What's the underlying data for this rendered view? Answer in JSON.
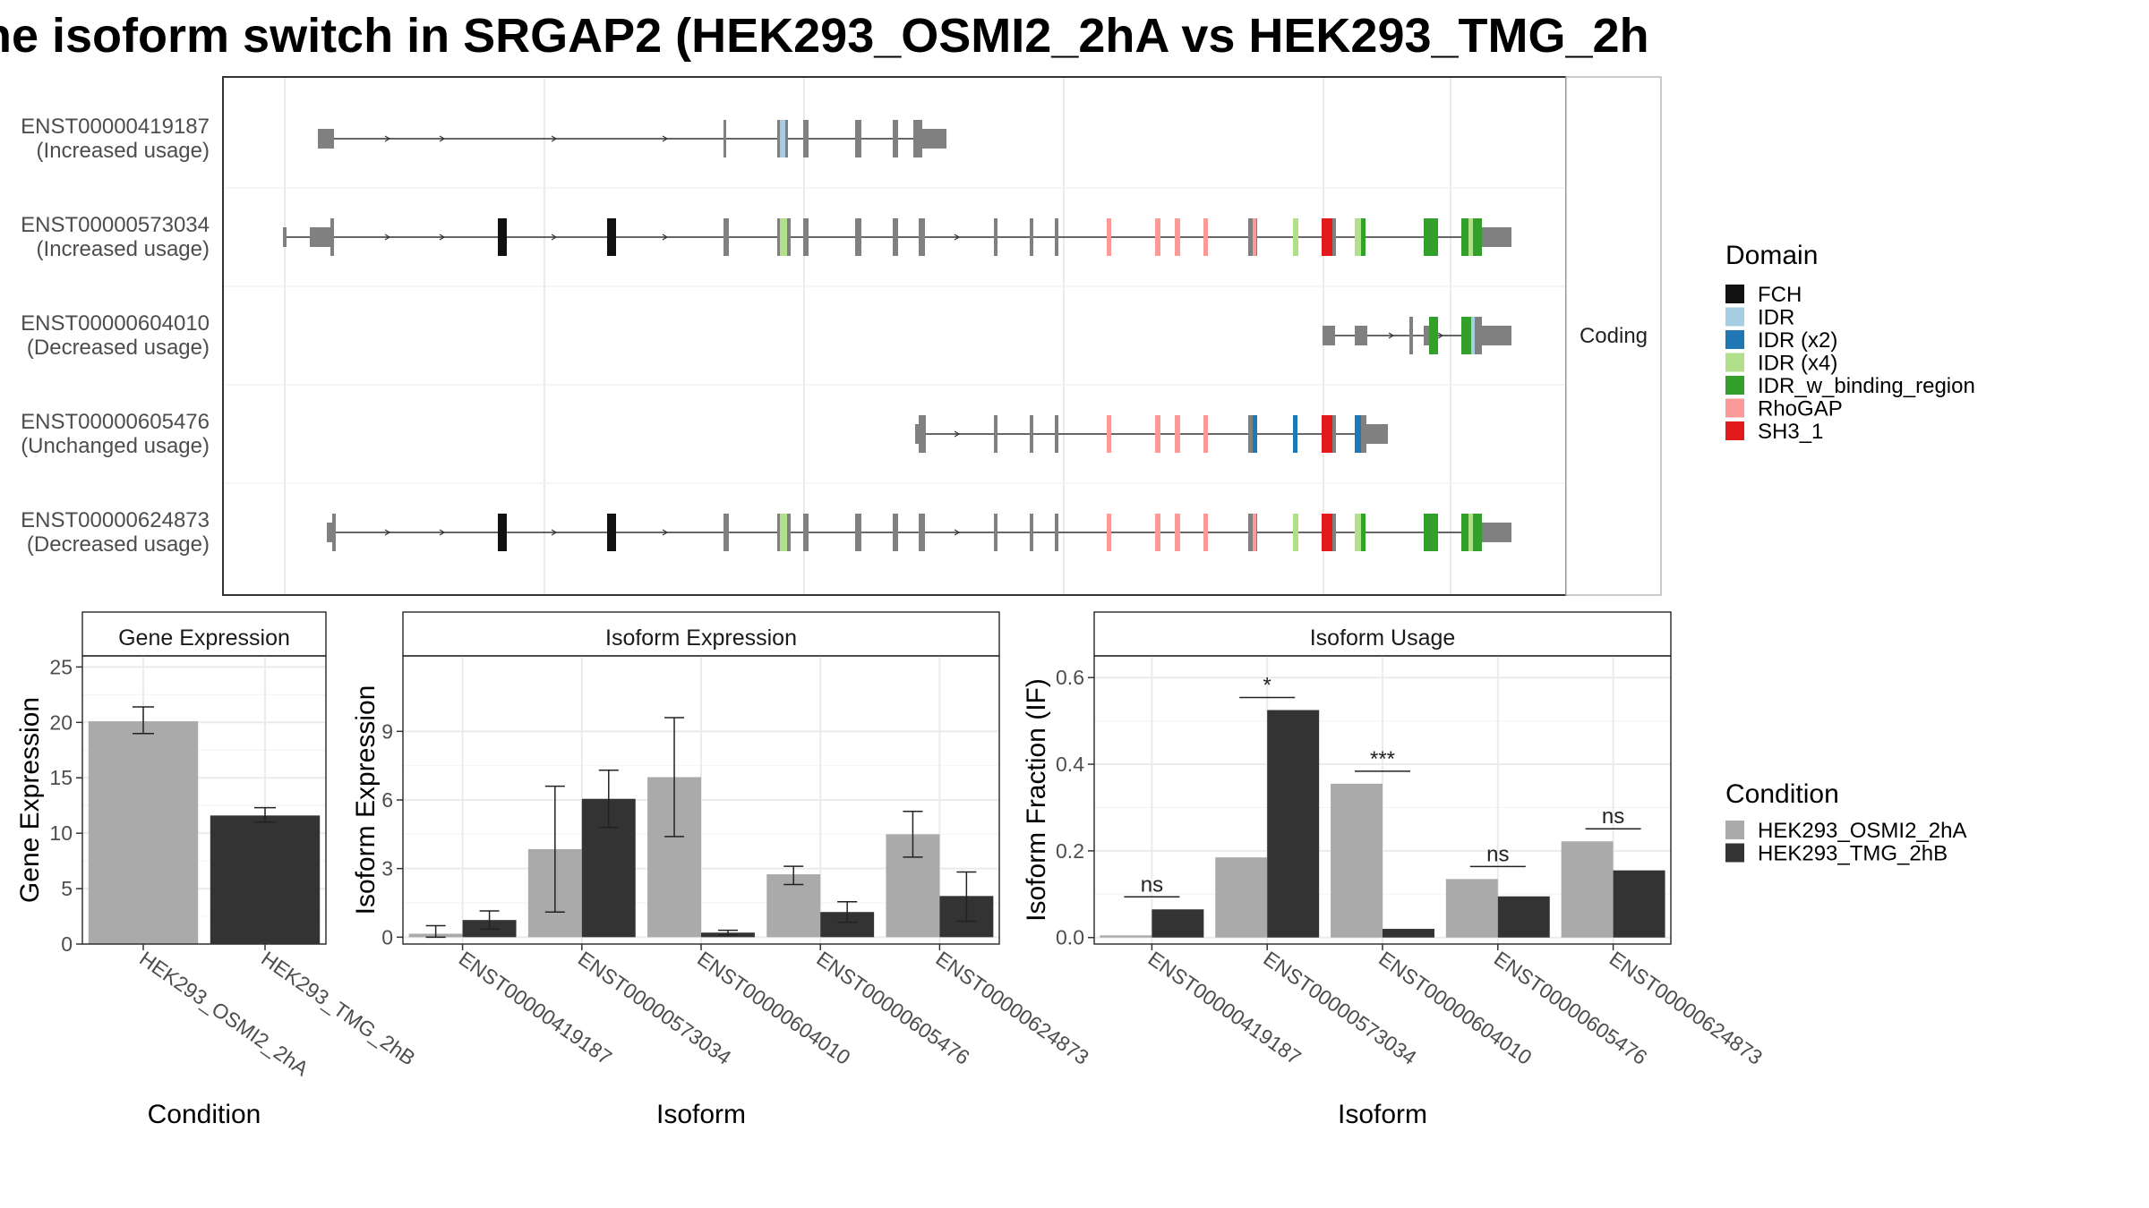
{
  "title": "ne isoform switch in SRGAP2 (HEK293_OSMI2_2hA vs HEK293_TMG_2h",
  "structure": {
    "facet_label": "Coding",
    "transcripts": [
      {
        "id": "ENST00000419187",
        "usage": "(Increased usage)"
      },
      {
        "id": "ENST00000573034",
        "usage": "(Increased usage)"
      },
      {
        "id": "ENST00000604010",
        "usage": "(Decreased usage)"
      },
      {
        "id": "ENST00000605476",
        "usage": "(Unchanged usage)"
      },
      {
        "id": "ENST00000624873",
        "usage": "(Decreased usage)"
      }
    ]
  },
  "domain_legend": {
    "title": "Domain",
    "items": [
      {
        "label": "FCH",
        "color": "#111111"
      },
      {
        "label": "IDR",
        "color": "#a6cee3"
      },
      {
        "label": "IDR (x2)",
        "color": "#1f78b4"
      },
      {
        "label": "IDR (x4)",
        "color": "#b2df8a"
      },
      {
        "label": "IDR_w_binding_region",
        "color": "#33a02c"
      },
      {
        "label": "RhoGAP",
        "color": "#fb9a99"
      },
      {
        "label": "SH3_1",
        "color": "#e31a1c"
      }
    ]
  },
  "condition_legend": {
    "title": "Condition",
    "items": [
      {
        "label": "HEK293_OSMI2_2hA",
        "color": "#aaaaaa"
      },
      {
        "label": "HEK293_TMG_2hB",
        "color": "#333333"
      }
    ]
  },
  "chart_data": [
    {
      "type": "bar",
      "title": "Gene Expression",
      "xlabel": "Condition",
      "ylabel": "Gene Expression",
      "ylim": [
        0,
        26
      ],
      "yticks": [
        0,
        5,
        10,
        15,
        20,
        25
      ],
      "categories": [
        "HEK293_OSMI2_2hA",
        "HEK293_TMG_2hB"
      ],
      "values": [
        20.1,
        11.6
      ],
      "errors": [
        [
          19.0,
          21.4
        ],
        [
          11.0,
          12.3
        ]
      ],
      "colors": [
        "#aaaaaa",
        "#333333"
      ]
    },
    {
      "type": "bar",
      "title": "Isoform Expression",
      "xlabel": "Isoform",
      "ylabel": "Isoform Expression",
      "ylim": [
        -0.3,
        12.3
      ],
      "yticks": [
        0,
        3,
        6,
        9
      ],
      "categories": [
        "ENST00000419187",
        "ENST00000573034",
        "ENST00000604010",
        "ENST00000605476",
        "ENST00000624873"
      ],
      "series": [
        {
          "name": "HEK293_OSMI2_2hA",
          "color": "#aaaaaa",
          "values": [
            0.15,
            3.85,
            7.0,
            2.75,
            4.5
          ],
          "errors": [
            [
              0.0,
              0.5
            ],
            [
              1.1,
              6.6
            ],
            [
              4.4,
              9.6
            ],
            [
              2.3,
              3.1
            ],
            [
              3.5,
              5.5
            ]
          ]
        },
        {
          "name": "HEK293_TMG_2hB",
          "color": "#333333",
          "values": [
            0.75,
            6.05,
            0.2,
            1.1,
            1.8
          ],
          "errors": [
            [
              0.35,
              1.15
            ],
            [
              4.8,
              7.3
            ],
            [
              0.1,
              0.3
            ],
            [
              0.65,
              1.55
            ],
            [
              0.7,
              2.85
            ]
          ]
        }
      ]
    },
    {
      "type": "bar",
      "title": "Isoform Usage",
      "xlabel": "Isoform",
      "ylabel": "Isoform Fraction (IF)",
      "ylim": [
        -0.015,
        0.65
      ],
      "yticks": [
        "0.0",
        "0.2",
        "0.4",
        "0.6"
      ],
      "categories": [
        "ENST00000419187",
        "ENST00000573034",
        "ENST00000604010",
        "ENST00000605476",
        "ENST00000624873"
      ],
      "series": [
        {
          "name": "HEK293_OSMI2_2hA",
          "color": "#aaaaaa",
          "values": [
            0.005,
            0.185,
            0.355,
            0.135,
            0.222
          ]
        },
        {
          "name": "HEK293_TMG_2hB",
          "color": "#333333",
          "values": [
            0.065,
            0.525,
            0.02,
            0.095,
            0.155
          ]
        }
      ],
      "significance": [
        "ns",
        "*",
        "***",
        "ns",
        "ns"
      ]
    }
  ]
}
